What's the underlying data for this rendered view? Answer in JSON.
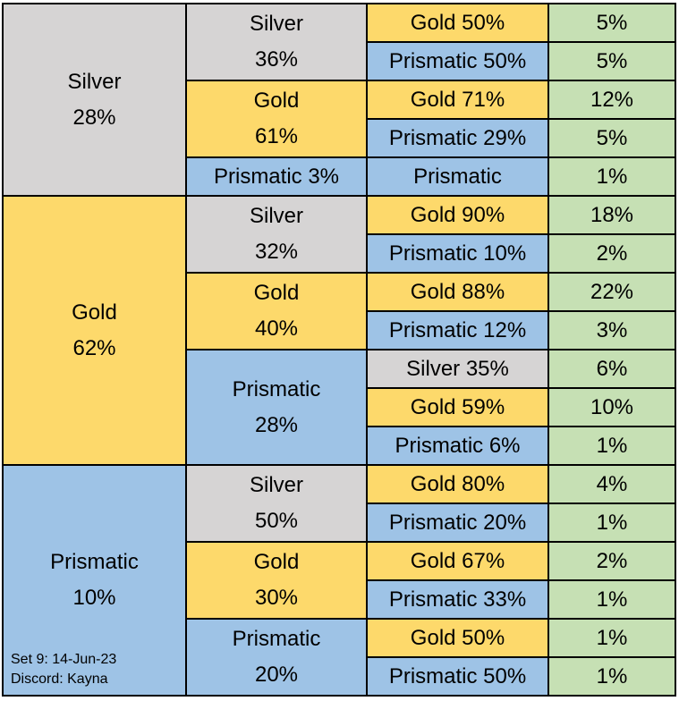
{
  "colors": {
    "silver": "#d6d4d4",
    "gold": "#fdd96b",
    "prismatic": "#9ec3e6",
    "probability": "#c6e0b4",
    "border": "#000000"
  },
  "table": [
    {
      "tier": "Silver",
      "tier_class": "silver",
      "pct": "28%",
      "children": [
        {
          "tier": "Silver",
          "tier_class": "silver",
          "pct": "36%",
          "outcomes": [
            {
              "label": "Gold 50%",
              "tier_class": "gold",
              "prob": "5%"
            },
            {
              "label": "Prismatic 50%",
              "tier_class": "prismatic",
              "prob": "5%"
            }
          ]
        },
        {
          "tier": "Gold",
          "tier_class": "gold",
          "pct": "61%",
          "outcomes": [
            {
              "label": "Gold 71%",
              "tier_class": "gold",
              "prob": "12%"
            },
            {
              "label": "Prismatic 29%",
              "tier_class": "prismatic",
              "prob": "5%"
            }
          ]
        },
        {
          "tier": "Prismatic",
          "tier_class": "prismatic",
          "pct": "3%",
          "inline": true,
          "outcomes": [
            {
              "label": "Prismatic",
              "tier_class": "prismatic",
              "prob": "1%"
            }
          ]
        }
      ]
    },
    {
      "tier": "Gold",
      "tier_class": "gold",
      "pct": "62%",
      "children": [
        {
          "tier": "Silver",
          "tier_class": "silver",
          "pct": "32%",
          "outcomes": [
            {
              "label": "Gold 90%",
              "tier_class": "gold",
              "prob": "18%"
            },
            {
              "label": "Prismatic 10%",
              "tier_class": "prismatic",
              "prob": "2%"
            }
          ]
        },
        {
          "tier": "Gold",
          "tier_class": "gold",
          "pct": "40%",
          "outcomes": [
            {
              "label": "Gold 88%",
              "tier_class": "gold",
              "prob": "22%"
            },
            {
              "label": "Prismatic 12%",
              "tier_class": "prismatic",
              "prob": "3%"
            }
          ]
        },
        {
          "tier": "Prismatic",
          "tier_class": "prismatic",
          "pct": "28%",
          "outcomes": [
            {
              "label": "Silver 35%",
              "tier_class": "silver",
              "prob": "6%"
            },
            {
              "label": "Gold 59%",
              "tier_class": "gold",
              "prob": "10%"
            },
            {
              "label": "Prismatic 6%",
              "tier_class": "prismatic",
              "prob": "1%"
            }
          ]
        }
      ]
    },
    {
      "tier": "Prismatic",
      "tier_class": "prismatic",
      "pct": "10%",
      "credit": [
        "Set 9: 14-Jun-23",
        "Discord: Kayna"
      ],
      "children": [
        {
          "tier": "Silver",
          "tier_class": "silver",
          "pct": "50%",
          "outcomes": [
            {
              "label": "Gold 80%",
              "tier_class": "gold",
              "prob": "4%"
            },
            {
              "label": "Prismatic 20%",
              "tier_class": "prismatic",
              "prob": "1%"
            }
          ]
        },
        {
          "tier": "Gold",
          "tier_class": "gold",
          "pct": "30%",
          "outcomes": [
            {
              "label": "Gold 67%",
              "tier_class": "gold",
              "prob": "2%"
            },
            {
              "label": "Prismatic 33%",
              "tier_class": "prismatic",
              "prob": "1%"
            }
          ]
        },
        {
          "tier": "Prismatic",
          "tier_class": "prismatic",
          "pct": "20%",
          "outcomes": [
            {
              "label": "Gold 50%",
              "tier_class": "gold",
              "prob": "1%"
            },
            {
              "label": "Prismatic 50%",
              "tier_class": "prismatic",
              "prob": "1%"
            }
          ]
        }
      ]
    }
  ]
}
